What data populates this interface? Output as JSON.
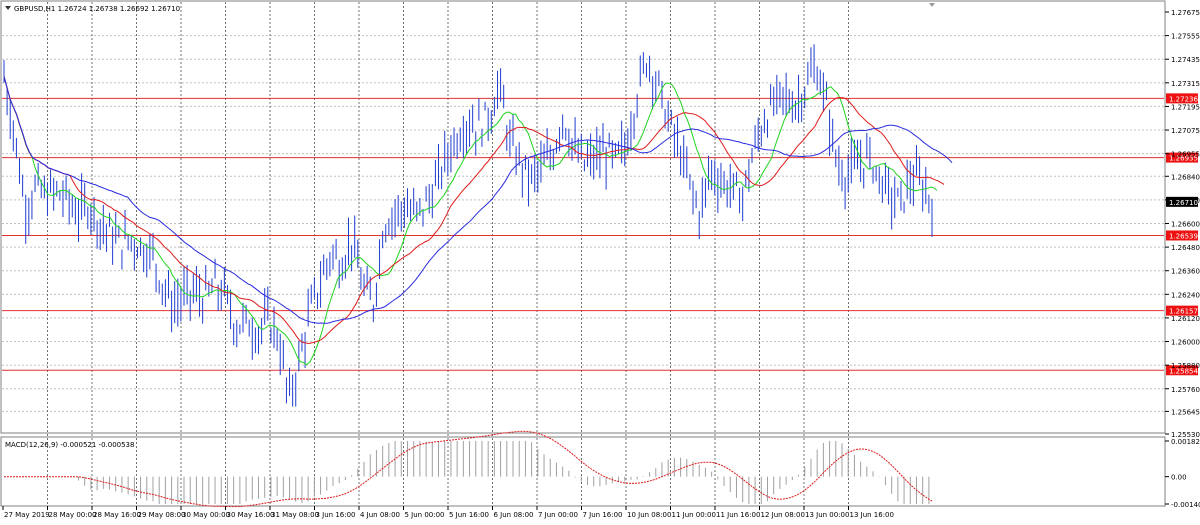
{
  "symbol_header": "GBPUSD,H1  1.26724 1.26738 1.26692 1.26710",
  "macd_header": "MACD(12,26,9) -0.000521 -0.000538",
  "colors": {
    "candles": "#1e3ccf",
    "ma_fast": "#1fd41f",
    "ma_mid": "#e01a1a",
    "ma_slow": "#2a2ae0",
    "level_line": "#e03030",
    "level_label_bg": "#ee1111",
    "current_label_bg": "#000000"
  },
  "price_axis": {
    "min": 1.2553,
    "max": 1.27675,
    "ticks": [
      "1.27675",
      "1.27555",
      "1.27435",
      "1.27315",
      "1.27195",
      "1.27075",
      "1.26955",
      "1.26840",
      "1.26720",
      "1.26600",
      "1.26480",
      "1.26360",
      "1.26240",
      "1.26120",
      "1.26000",
      "1.25880",
      "1.25760",
      "1.25645",
      "1.25530"
    ]
  },
  "levels": [
    {
      "label": "1.27236",
      "value": 1.27236
    },
    {
      "label": "1.26935",
      "value": 1.26935
    },
    {
      "label": "1.26539",
      "value": 1.26539
    },
    {
      "label": "1.26157",
      "value": 1.26157
    },
    {
      "label": "1.25854",
      "value": 1.25854
    }
  ],
  "current_price": {
    "label": "1.26710",
    "value": 1.2671
  },
  "time_axis": [
    "27 May 2019",
    "28 May 00:00",
    "28 May 16:00",
    "29 May 08:00",
    "30 May 00:00",
    "30 May 16:00",
    "31 May 08:00",
    "3 Jun 16:00",
    "4 Jun 08:00",
    "5 Jun 00:00",
    "5 Jun 16:00",
    "6 Jun 08:00",
    "7 Jun 00:00",
    "7 Jun 16:00",
    "10 Jun 08:00",
    "11 Jun 00:00",
    "11 Jun 16:00",
    "12 Jun 08:00",
    "13 Jun 00:00",
    "13 Jun 16:00"
  ],
  "macd_axis": {
    "min": -0.001403,
    "max": 0.001829,
    "ticks": [
      "0.001829",
      "0.00",
      "-0.001403"
    ]
  },
  "chart_data": {
    "type": "line",
    "title": "GBPUSD,H1",
    "series": [
      {
        "values": [
          1.2735,
          1.2705,
          1.2668,
          1.2678,
          1.2674,
          1.2676,
          1.2672,
          1.2665,
          1.267,
          1.2661,
          1.2655,
          1.265,
          1.2652,
          1.2648,
          1.2645,
          1.263,
          1.2618,
          1.2622,
          1.2625,
          1.2622,
          1.2628,
          1.2623,
          1.2608,
          1.261,
          1.2605,
          1.2611,
          1.2603,
          1.257,
          1.259,
          1.2615,
          1.263,
          1.2645,
          1.264,
          1.2652,
          1.2628,
          1.2618,
          1.266,
          1.2665,
          1.2668,
          1.2664,
          1.267,
          1.268,
          1.2695,
          1.2705,
          1.2712,
          1.2709,
          1.2715,
          1.273,
          1.27,
          1.269,
          1.2682,
          1.2688,
          1.2695,
          1.2715,
          1.2698,
          1.269,
          1.2693,
          1.2696,
          1.2692,
          1.27,
          1.2725,
          1.2745,
          1.273,
          1.2712,
          1.2698,
          1.268,
          1.2665,
          1.2688,
          1.2681,
          1.2678,
          1.2673,
          1.2695,
          1.2712,
          1.272,
          1.2725,
          1.272,
          1.273,
          1.274,
          1.272,
          1.269,
          1.2684,
          1.269,
          1.2694,
          1.2684,
          1.2674,
          1.267,
          1.2683,
          1.268,
          1.2671
        ]
      }
    ],
    "ylim": [
      1.2553,
      1.27675
    ]
  }
}
